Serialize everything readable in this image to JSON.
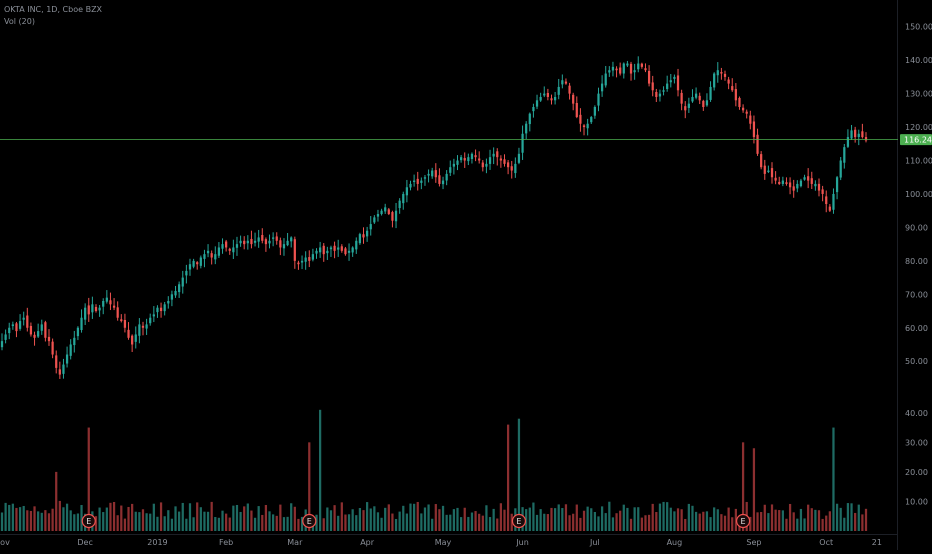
{
  "header": {
    "symbol_line": "OKTA INC, 1D, Cboe BZX",
    "volume_line": "Vol (20)"
  },
  "colors": {
    "background": "#000000",
    "up": "#26a69a",
    "down": "#ef5350",
    "up_volume": "#1e6b63",
    "down_volume": "#8c2f30",
    "price_line": "#4caf50",
    "axis_text": "#8a8f98",
    "earnings_marker_fill": "#1a0a0a",
    "earnings_marker_stroke": "#ef5350"
  },
  "chart_data": {
    "type": "candlestick",
    "title": "",
    "xlabel": "",
    "ylabel": "",
    "price_ylim": [
      39,
      155
    ],
    "volume_ylim": [
      0,
      45
    ],
    "grid": false,
    "price_ticks": [
      "150.00",
      "140.00",
      "130.00",
      "120.00",
      "110.00",
      "100.00",
      "90.00",
      "80.00",
      "70.00",
      "60.00",
      "50.00"
    ],
    "volume_ticks": [
      "40.00",
      "30.00",
      "20.00",
      "10.00"
    ],
    "x_tick_labels": [
      {
        "label": "Nov",
        "bar": 0
      },
      {
        "label": "Dec",
        "bar": 23
      },
      {
        "label": "2019",
        "bar": 43
      },
      {
        "label": "Feb",
        "bar": 62
      },
      {
        "label": "Mar",
        "bar": 81
      },
      {
        "label": "Apr",
        "bar": 101
      },
      {
        "label": "May",
        "bar": 122
      },
      {
        "label": "Jun",
        "bar": 144
      },
      {
        "label": "Jul",
        "bar": 164
      },
      {
        "label": "Aug",
        "bar": 186
      },
      {
        "label": "Sep",
        "bar": 208
      },
      {
        "label": "Oct",
        "bar": 228
      },
      {
        "label": "21",
        "bar": 242
      }
    ],
    "current_price": "116.24",
    "earnings_label": "E",
    "earnings_bars": [
      24,
      85,
      143,
      205
    ],
    "closes": [
      56,
      58,
      60,
      61,
      59,
      62,
      63,
      60,
      58,
      57,
      59,
      61,
      57,
      56,
      52,
      48,
      46,
      49,
      52,
      55,
      57,
      60,
      63,
      66,
      64,
      67,
      65,
      66,
      68,
      69,
      67,
      66,
      63,
      62,
      60,
      57,
      55,
      58,
      61,
      60,
      61,
      63,
      64,
      66,
      65,
      67,
      68,
      70,
      71,
      73,
      75,
      77,
      79,
      80,
      79,
      81,
      82,
      83,
      81,
      82,
      84,
      85,
      84,
      83,
      84,
      85,
      86,
      85,
      86,
      85,
      86,
      87,
      86,
      85,
      86,
      87,
      86,
      84,
      85,
      86,
      87,
      80,
      79,
      80,
      81,
      80,
      82,
      83,
      84,
      82,
      83,
      84,
      83,
      84,
      83,
      82,
      83,
      84,
      86,
      88,
      87,
      89,
      91,
      93,
      94,
      95,
      96,
      94,
      92,
      95,
      98,
      100,
      102,
      103,
      104,
      103,
      104,
      105,
      106,
      107,
      105,
      103,
      104,
      106,
      108,
      109,
      110,
      111,
      110,
      111,
      112,
      111,
      110,
      108,
      109,
      111,
      112,
      111,
      110,
      109,
      108,
      107,
      109,
      112,
      118,
      121,
      124,
      126,
      128,
      129,
      130,
      129,
      128,
      129,
      132,
      134,
      133,
      130,
      127,
      123,
      121,
      120,
      121,
      123,
      126,
      130,
      133,
      136,
      137,
      138,
      137,
      136,
      139,
      139,
      136,
      137,
      139,
      138,
      137,
      133,
      131,
      129,
      130,
      131,
      133,
      134,
      135,
      131,
      127,
      125,
      127,
      129,
      130,
      128,
      126,
      128,
      132,
      136,
      137,
      136,
      135,
      133,
      131,
      128,
      126,
      125,
      124,
      121,
      117,
      112,
      108,
      106,
      107,
      105,
      104,
      103,
      104,
      103,
      102,
      101,
      103,
      104,
      105,
      104,
      103,
      103,
      101,
      100,
      97,
      95,
      100,
      105,
      110,
      114,
      117,
      119,
      117,
      118,
      117,
      116
    ]
  }
}
